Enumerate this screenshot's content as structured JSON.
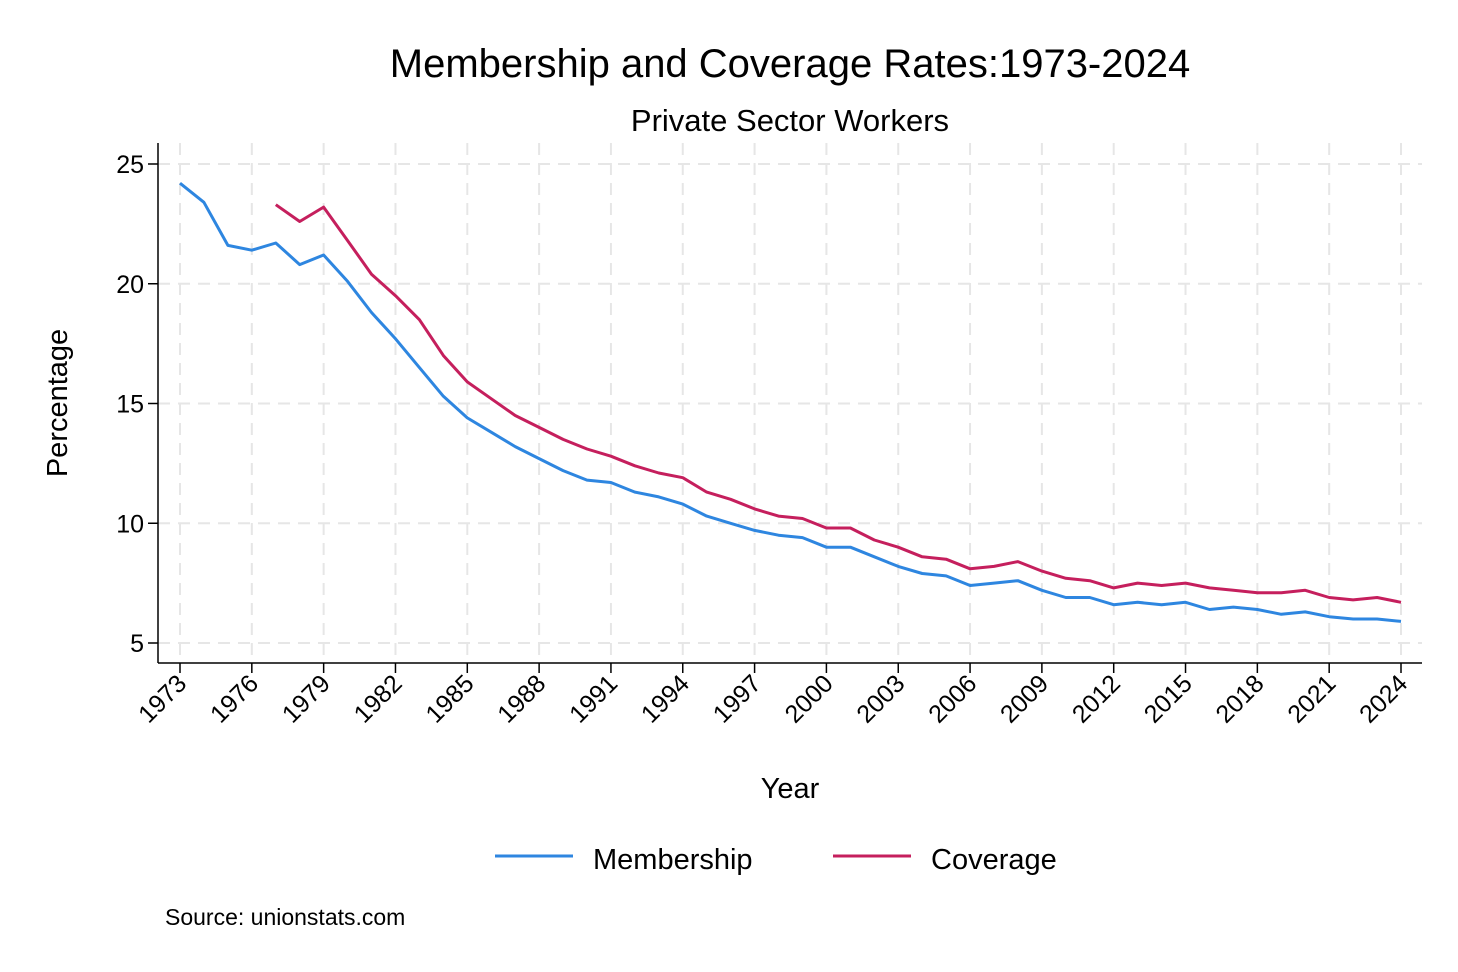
{
  "chart_data": {
    "type": "line",
    "title": "Membership and Coverage Rates:1973-2024",
    "subtitle": "Private Sector Workers",
    "xlabel": "Year",
    "ylabel": "Percentage",
    "note": "Source: unionstats.com",
    "xlim": [
      1973,
      2024
    ],
    "ylim": [
      5,
      25
    ],
    "xticks": [
      1973,
      1976,
      1979,
      1982,
      1985,
      1988,
      1991,
      1994,
      1997,
      2000,
      2003,
      2006,
      2009,
      2012,
      2015,
      2018,
      2021,
      2024
    ],
    "yticks": [
      5,
      10,
      15,
      20,
      25
    ],
    "grid": true,
    "legend_position": "bottom",
    "series": [
      {
        "name": "Membership",
        "color": "#2e86e0",
        "x": [
          1973,
          1974,
          1975,
          1976,
          1977,
          1978,
          1979,
          1980,
          1981,
          1982,
          1983,
          1984,
          1985,
          1986,
          1987,
          1988,
          1989,
          1990,
          1991,
          1992,
          1993,
          1994,
          1995,
          1996,
          1997,
          1998,
          1999,
          2000,
          2001,
          2002,
          2003,
          2004,
          2005,
          2006,
          2007,
          2008,
          2009,
          2010,
          2011,
          2012,
          2013,
          2014,
          2015,
          2016,
          2017,
          2018,
          2019,
          2020,
          2021,
          2022,
          2023,
          2024
        ],
        "y": [
          24.2,
          23.4,
          21.6,
          21.4,
          21.7,
          20.8,
          21.2,
          20.1,
          18.8,
          17.7,
          16.5,
          15.3,
          14.4,
          13.8,
          13.2,
          12.7,
          12.2,
          11.8,
          11.7,
          11.3,
          11.1,
          10.8,
          10.3,
          10.0,
          9.7,
          9.5,
          9.4,
          9.0,
          9.0,
          8.6,
          8.2,
          7.9,
          7.8,
          7.4,
          7.5,
          7.6,
          7.2,
          6.9,
          6.9,
          6.6,
          6.7,
          6.6,
          6.7,
          6.4,
          6.5,
          6.4,
          6.2,
          6.3,
          6.1,
          6.0,
          6.0,
          5.9
        ]
      },
      {
        "name": "Coverage",
        "color": "#c51f5d",
        "x": [
          1977,
          1978,
          1979,
          1980,
          1981,
          1982,
          1983,
          1984,
          1985,
          1986,
          1987,
          1988,
          1989,
          1990,
          1991,
          1992,
          1993,
          1994,
          1995,
          1996,
          1997,
          1998,
          1999,
          2000,
          2001,
          2002,
          2003,
          2004,
          2005,
          2006,
          2007,
          2008,
          2009,
          2010,
          2011,
          2012,
          2013,
          2014,
          2015,
          2016,
          2017,
          2018,
          2019,
          2020,
          2021,
          2022,
          2023,
          2024
        ],
        "y": [
          23.3,
          22.6,
          23.2,
          21.8,
          20.4,
          19.5,
          18.5,
          17.0,
          15.9,
          15.2,
          14.5,
          14.0,
          13.5,
          13.1,
          12.8,
          12.4,
          12.1,
          11.9,
          11.3,
          11.0,
          10.6,
          10.3,
          10.2,
          9.8,
          9.8,
          9.3,
          9.0,
          8.6,
          8.5,
          8.1,
          8.2,
          8.4,
          8.0,
          7.7,
          7.6,
          7.3,
          7.5,
          7.4,
          7.5,
          7.3,
          7.2,
          7.1,
          7.1,
          7.2,
          6.9,
          6.8,
          6.9,
          6.7
        ]
      }
    ]
  }
}
